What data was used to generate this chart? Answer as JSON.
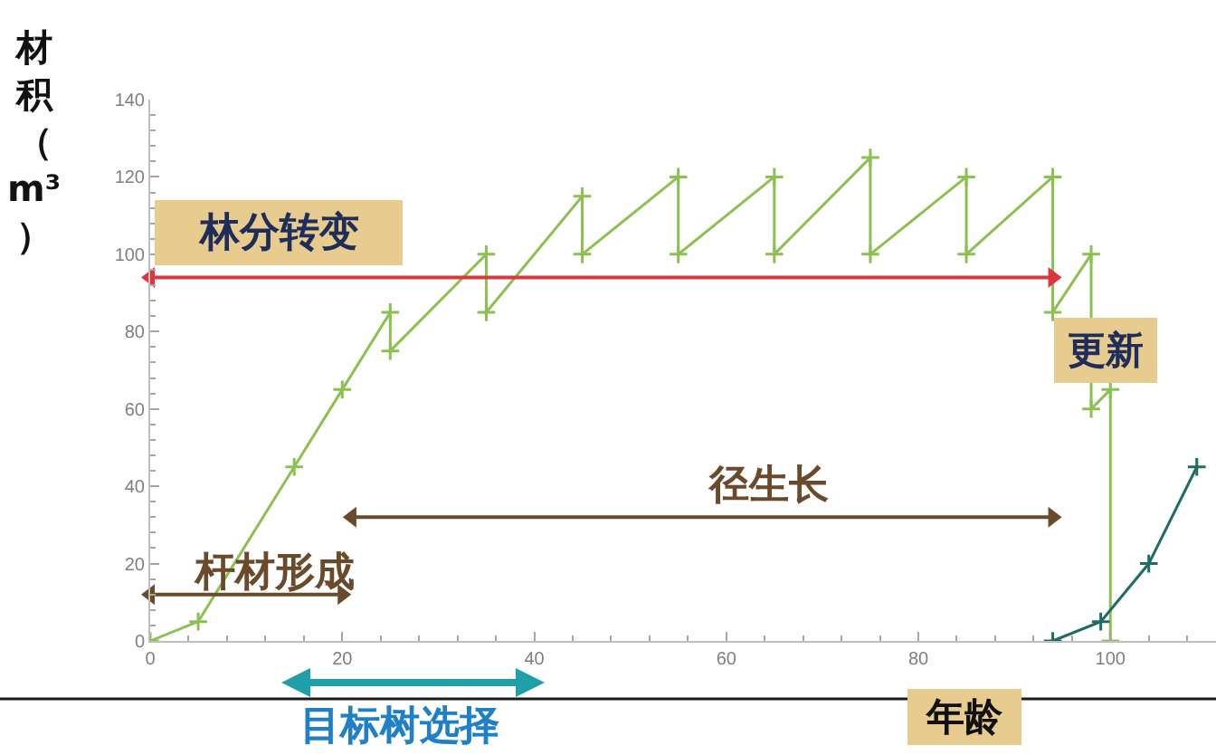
{
  "chart_data": {
    "type": "line",
    "xlabel": "年龄",
    "ylabel": "材积（m³）",
    "xlim": [
      0,
      111
    ],
    "ylim": [
      0,
      140
    ],
    "xticks": [
      0,
      {
        "value": 4,
        "label": null
      },
      {
        "value": 8,
        "label": null
      },
      {
        "value": 12,
        "label": null
      },
      {
        "value": 16,
        "label": null
      },
      20,
      {
        "value": 24,
        "label": null
      },
      {
        "value": 28,
        "label": null
      },
      {
        "value": 32,
        "label": null
      },
      {
        "value": 36,
        "label": null
      },
      40,
      {
        "value": 44,
        "label": null
      },
      {
        "value": 48,
        "label": null
      },
      {
        "value": 52,
        "label": null
      },
      {
        "value": 56,
        "label": null
      },
      60,
      {
        "value": 64,
        "label": null
      },
      {
        "value": 68,
        "label": null
      },
      {
        "value": 72,
        "label": null
      },
      {
        "value": 76,
        "label": null
      },
      80,
      {
        "value": 84,
        "label": null
      },
      {
        "value": 88,
        "label": null
      },
      {
        "value": 92,
        "label": null
      },
      {
        "value": 96,
        "label": null
      },
      100,
      {
        "value": 104,
        "label": null
      },
      {
        "value": 108,
        "label": null
      }
    ],
    "yticks": [
      0,
      {
        "value": 4,
        "label": null
      },
      {
        "value": 8,
        "label": null
      },
      {
        "value": 12,
        "label": null
      },
      {
        "value": 16,
        "label": null
      },
      20,
      {
        "value": 24,
        "label": null
      },
      {
        "value": 28,
        "label": null
      },
      {
        "value": 32,
        "label": null
      },
      {
        "value": 36,
        "label": null
      },
      40,
      {
        "value": 44,
        "label": null
      },
      {
        "value": 48,
        "label": null
      },
      {
        "value": 52,
        "label": null
      },
      {
        "value": 56,
        "label": null
      },
      60,
      {
        "value": 64,
        "label": null
      },
      {
        "value": 68,
        "label": null
      },
      {
        "value": 72,
        "label": null
      },
      {
        "value": 76,
        "label": null
      },
      80,
      {
        "value": 84,
        "label": null
      },
      {
        "value": 88,
        "label": null
      },
      {
        "value": 92,
        "label": null
      },
      {
        "value": 96,
        "label": null
      },
      100,
      {
        "value": 104,
        "label": null
      },
      {
        "value": 108,
        "label": null
      },
      {
        "value": 112,
        "label": null
      },
      {
        "value": 116,
        "label": null
      },
      120,
      {
        "value": 124,
        "label": null
      },
      {
        "value": 128,
        "label": null
      },
      {
        "value": 132,
        "label": null
      },
      {
        "value": 136,
        "label": null
      },
      140
    ],
    "marker": "cross",
    "line_style": "solid",
    "series": [
      {
        "color": "#8cc152",
        "x": [
          0,
          5,
          15,
          20,
          25,
          25,
          35,
          35,
          45,
          45,
          55,
          55,
          65,
          65,
          75,
          75,
          85,
          85,
          94,
          94,
          98,
          98,
          100,
          100
        ],
        "values": [
          0,
          5,
          45,
          65,
          85,
          75,
          100,
          85,
          115,
          100,
          120,
          100,
          120,
          100,
          125,
          100,
          120,
          100,
          120,
          85,
          100,
          60,
          65,
          0
        ]
      },
      {
        "color": "#1f6b66",
        "x": [
          94,
          99,
          104,
          109
        ],
        "values": [
          0,
          5,
          20,
          45
        ]
      },
      {
        "name": "林分转变",
        "color": "#d9383e",
        "x": [
          0,
          94
        ],
        "values": [
          94,
          94
        ],
        "marker": "triangle"
      },
      {
        "name": "径生长",
        "color": "#6b4a2b",
        "x": [
          21,
          94
        ],
        "values": [
          32,
          32
        ],
        "marker": "triangle"
      },
      {
        "name": "杆材形成",
        "color": "#6b4a2b",
        "x": [
          0,
          20
        ],
        "values": [
          12,
          12
        ],
        "marker": "triangle"
      }
    ],
    "annotations": [
      "更新",
      "目标树选择"
    ]
  }
}
